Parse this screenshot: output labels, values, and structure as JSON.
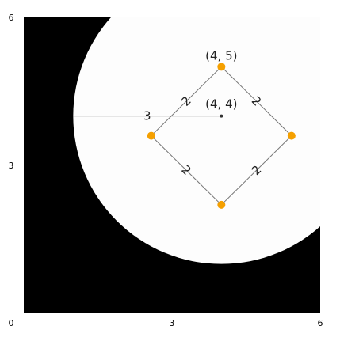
{
  "diagram": {
    "axis_ticks": {
      "x": [
        {
          "value": 0,
          "label": "0"
        },
        {
          "value": 3,
          "label": "3"
        },
        {
          "value": 6,
          "label": "6"
        }
      ],
      "y": [
        {
          "value": 3,
          "label": "3"
        },
        {
          "value": 6,
          "label": "6"
        }
      ]
    },
    "domain": {
      "x": [
        0,
        6
      ],
      "y": [
        0,
        6
      ]
    },
    "colors": {
      "background": "#000000",
      "disk": "#fdfdfd",
      "edge": "#777777",
      "vertex": "#f5a000",
      "text": "#222222"
    },
    "circle": {
      "center": [
        4,
        4
      ],
      "radius": 3
    },
    "center_label": "(4, 4)",
    "radius_line": {
      "from": [
        4,
        4
      ],
      "to": [
        1,
        4
      ],
      "label": "3"
    },
    "vertices": [
      {
        "pos": [
          4,
          5
        ],
        "label": "(4, 5)"
      },
      {
        "pos": [
          5.42,
          3.6
        ],
        "label": ""
      },
      {
        "pos": [
          4,
          2.2
        ],
        "label": ""
      },
      {
        "pos": [
          2.58,
          3.6
        ],
        "label": ""
      }
    ],
    "edges": [
      {
        "from": 0,
        "to": 1,
        "label": "2"
      },
      {
        "from": 1,
        "to": 2,
        "label": "2"
      },
      {
        "from": 2,
        "to": 3,
        "label": "2"
      },
      {
        "from": 3,
        "to": 0,
        "label": "2"
      }
    ]
  }
}
